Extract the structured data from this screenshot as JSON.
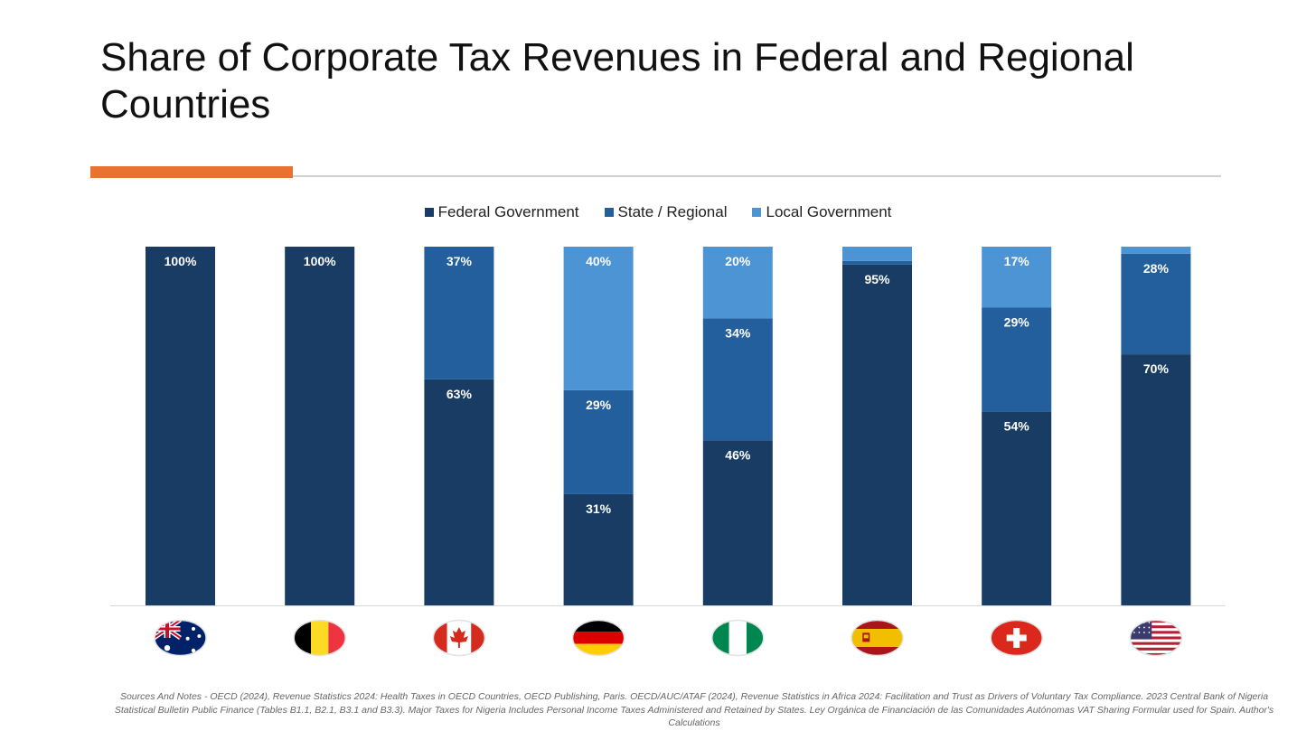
{
  "title": "Share of Corporate Tax Revenues in Federal and Regional Countries",
  "footnote": "Sources And Notes - OECD (2024), Revenue Statistics 2024: Health Taxes in OECD Countries, OECD Publishing, Paris. OECD/AUC/ATAF (2024), Revenue Statistics in Africa 2024: Facilitation and Trust as Drivers of Voluntary Tax Compliance. 2023 Central Bank of Nigeria Statistical Bulletin Public Finance  (Tables B1.1, B2.1, B3.1 and B3.3). Major Taxes for Nigeria Includes Personal Income Taxes Administered and Retained by States. Ley Orgánica de Financiación de las Comunidades Autónomas VAT Sharing Formular used for Spain. Author's Calculations",
  "colors": {
    "accent": "#E97132",
    "federal": "#183C63",
    "state": "#225F9C",
    "local": "#4D94D5"
  },
  "chart_data": {
    "type": "bar",
    "stacked": true,
    "categories": [
      "Australia",
      "Belgium",
      "Canada",
      "Germany",
      "Nigeria",
      "Spain",
      "Switzerland",
      "United States"
    ],
    "category_display": "flag-icons",
    "series": [
      {
        "name": "Federal Government",
        "color": "#183C63",
        "values": [
          100,
          100,
          63,
          31,
          46,
          95,
          54,
          70
        ],
        "labels": [
          "100%",
          "100%",
          "63%",
          "31%",
          "46%",
          "95%",
          "54%",
          "70%"
        ]
      },
      {
        "name": "State / Regional",
        "color": "#225F9C",
        "values": [
          0,
          0,
          37,
          29,
          34,
          1,
          29,
          28
        ],
        "labels": [
          "",
          "",
          "37%",
          "29%",
          "34%",
          "",
          "29%",
          "28%"
        ]
      },
      {
        "name": "Local Government",
        "color": "#4D94D5",
        "values": [
          0,
          0,
          0,
          40,
          20,
          4,
          17,
          2
        ],
        "labels": [
          "",
          "",
          "",
          "40%",
          "20%",
          "",
          "17%",
          ""
        ]
      }
    ],
    "ylim": [
      0,
      100
    ],
    "legend": "top-center",
    "grid": false
  }
}
